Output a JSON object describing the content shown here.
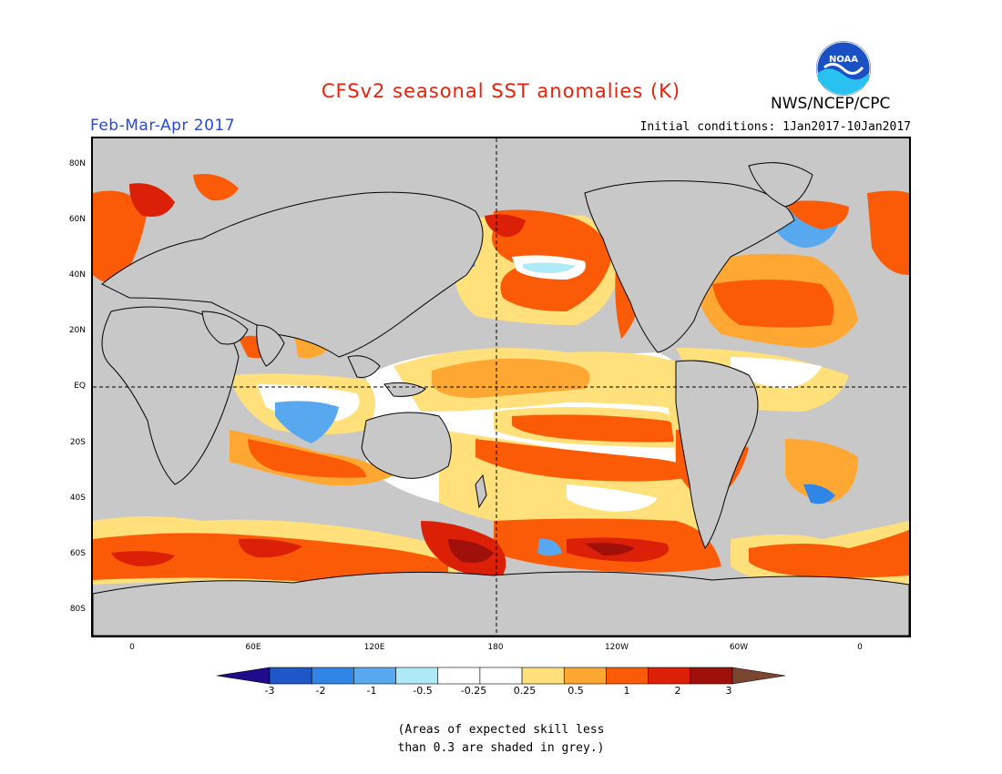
{
  "header": {
    "title": "CFSv2 seasonal SST anomalies (K)",
    "period": "Feb-Mar-Apr 2017",
    "initial_conditions": "Initial conditions: 1Jan2017-10Jan2017",
    "agency": "NWS/NCEP/CPC",
    "logo_text": "NOAA"
  },
  "axes": {
    "lon_labels": [
      "0",
      "60E",
      "120E",
      "180",
      "120W",
      "60W",
      "0"
    ],
    "lat_labels": [
      "80N",
      "60N",
      "40N",
      "20N",
      "EQ",
      "20S",
      "40S",
      "60S",
      "80S"
    ]
  },
  "legend": {
    "colors": [
      "#1e0c8c",
      "#1d57c8",
      "#2f86e6",
      "#58a8f0",
      "#aeeaf5",
      "#ffffff",
      "#ffffff",
      "#ffe07a",
      "#ffa733",
      "#fb5b07",
      "#dc2008",
      "#a0100a",
      "#7a4630"
    ],
    "labels": [
      "-3",
      "-2",
      "-1",
      "-0.5",
      "-0.25",
      "0.25",
      "0.5",
      "1",
      "2",
      "3"
    ]
  },
  "note": [
    "(Areas of expected skill less",
    "than 0.3 are shaded in grey.)"
  ],
  "colors": {
    "land": "#c8c8c8",
    "skill_grey": "#c8c8c8",
    "title": "#e8210c",
    "period": "#2a48d6"
  }
}
